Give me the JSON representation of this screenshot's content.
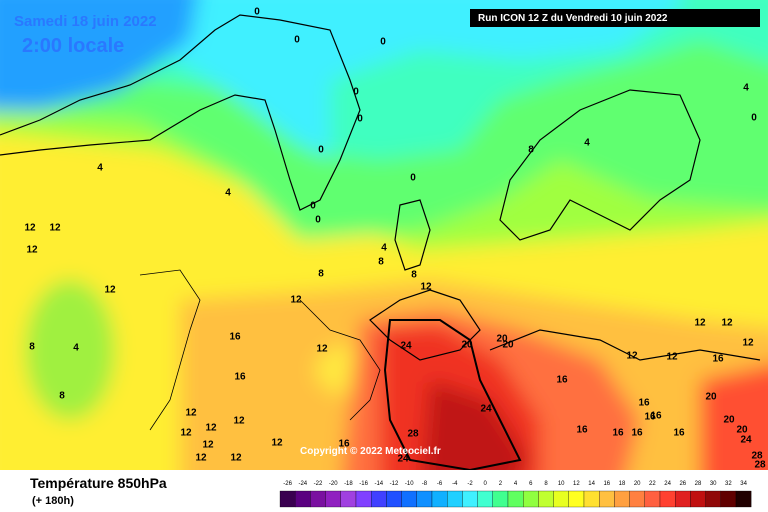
{
  "header": {
    "date": "Samedi 18 juin 2022",
    "time": "2:00 locale",
    "run": "Run ICON 12 Z du Vendredi 10 juin 2022"
  },
  "copyright": "Copyright © 2022 Meteociel.fr",
  "footer": {
    "title": "Température 850hPa",
    "lead": "(+ 180h)"
  },
  "legend": [
    {
      "label": "-26",
      "color": "#3a0050"
    },
    {
      "label": "-24",
      "color": "#5a0080"
    },
    {
      "label": "-22",
      "color": "#7a10a0"
    },
    {
      "label": "-20",
      "color": "#9020c0"
    },
    {
      "label": "-18",
      "color": "#a040e0"
    },
    {
      "label": "-16",
      "color": "#8040ff"
    },
    {
      "label": "-14",
      "color": "#4040ff"
    },
    {
      "label": "-12",
      "color": "#2050ff"
    },
    {
      "label": "-10",
      "color": "#1070ff"
    },
    {
      "label": "-8",
      "color": "#1090ff"
    },
    {
      "label": "-6",
      "color": "#10b0ff"
    },
    {
      "label": "-4",
      "color": "#20d0ff"
    },
    {
      "label": "-2",
      "color": "#40f0ff"
    },
    {
      "label": "0",
      "color": "#40ffd0"
    },
    {
      "label": "2",
      "color": "#40ff90"
    },
    {
      "label": "4",
      "color": "#60ff60"
    },
    {
      "label": "6",
      "color": "#90ff40"
    },
    {
      "label": "8",
      "color": "#c0ff30"
    },
    {
      "label": "10",
      "color": "#e8ff20"
    },
    {
      "label": "12",
      "color": "#ffff20"
    },
    {
      "label": "14",
      "color": "#ffe030"
    },
    {
      "label": "16",
      "color": "#ffc040"
    },
    {
      "label": "18",
      "color": "#ffa040"
    },
    {
      "label": "20",
      "color": "#ff8040"
    },
    {
      "label": "22",
      "color": "#ff6040"
    },
    {
      "label": "24",
      "color": "#ff4030"
    },
    {
      "label": "26",
      "color": "#e02020"
    },
    {
      "label": "28",
      "color": "#c01010"
    },
    {
      "label": "30",
      "color": "#900808"
    },
    {
      "label": "32",
      "color": "#600000"
    },
    {
      "label": "34",
      "color": "#200000"
    }
  ],
  "contour_labels": [
    "0",
    "0",
    "0",
    "0",
    "0",
    "0",
    "0",
    "0",
    "0",
    "4",
    "0",
    "4",
    "4",
    "4",
    "8",
    "4",
    "8",
    "8",
    "8",
    "12",
    "12",
    "12",
    "12",
    "12",
    "12",
    "8",
    "4",
    "8",
    "16",
    "12",
    "16",
    "24",
    "20",
    "20",
    "20",
    "16",
    "12",
    "12",
    "12",
    "12",
    "16",
    "24",
    "28",
    "24",
    "12",
    "12",
    "12",
    "12",
    "12",
    "12",
    "16",
    "12",
    "12",
    "16",
    "16",
    "16",
    "16",
    "16",
    "16",
    "20",
    "20",
    "24",
    "28",
    "28",
    "20",
    "12",
    "16"
  ]
}
